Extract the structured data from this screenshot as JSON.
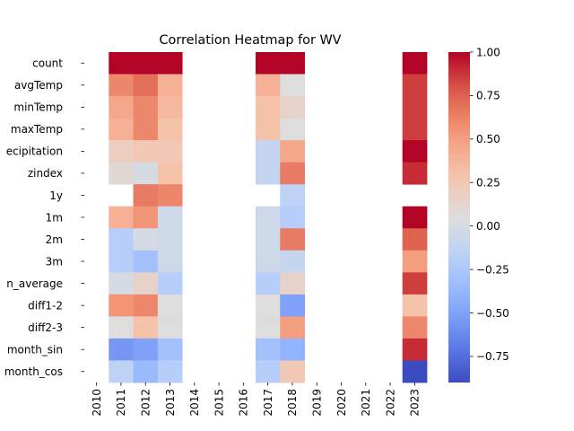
{
  "chart_data": {
    "type": "heatmap",
    "title": "Correlation Heatmap for WV",
    "xlabel": "",
    "ylabel": "",
    "colormap": "coolwarm",
    "clim": [
      -0.9,
      1.0
    ],
    "colorbar_ticks": [
      "1.00",
      "0.75",
      "0.50",
      "0.25",
      "0.00",
      "−0.25",
      "−0.50",
      "−0.75"
    ],
    "colorbar_tick_values": [
      1.0,
      0.75,
      0.5,
      0.25,
      0.0,
      -0.25,
      -0.5,
      -0.75
    ],
    "x_categories": [
      "2010",
      "2011",
      "2012",
      "2013",
      "2014",
      "2015",
      "2016",
      "2017",
      "2018",
      "2019",
      "2020",
      "2021",
      "2022",
      "2023"
    ],
    "y_categories": [
      "count",
      "avgTemp",
      "minTemp",
      "maxTemp",
      "precipitation",
      "zindex",
      "1y",
      "1m",
      "2m",
      "3m",
      "rolling_mean_average",
      "diff1-2",
      "diff2-3",
      "month_sin",
      "month_cos"
    ],
    "y_tick_labels_visible": [
      "count",
      "avgTemp",
      "minTemp",
      "maxTemp",
      "ecipitation",
      "zindex",
      "1y",
      "1m",
      "2m",
      "3m",
      "n_average",
      "diff1-2",
      "diff2-3",
      "month_sin",
      "month_cos"
    ],
    "values": [
      [
        null,
        1.0,
        1.0,
        1.0,
        null,
        null,
        null,
        1.0,
        1.0,
        null,
        null,
        null,
        null,
        1.0
      ],
      [
        null,
        0.6,
        0.7,
        0.4,
        null,
        null,
        null,
        0.4,
        0.05,
        null,
        null,
        null,
        null,
        0.85
      ],
      [
        null,
        0.45,
        0.6,
        0.35,
        null,
        null,
        null,
        0.3,
        0.15,
        null,
        null,
        null,
        null,
        0.85
      ],
      [
        null,
        0.4,
        0.6,
        0.3,
        null,
        null,
        null,
        0.3,
        0.05,
        null,
        null,
        null,
        null,
        0.85
      ],
      [
        null,
        0.2,
        0.25,
        0.25,
        null,
        null,
        null,
        -0.1,
        0.45,
        null,
        null,
        null,
        null,
        1.0
      ],
      [
        null,
        0.1,
        0.0,
        0.3,
        null,
        null,
        null,
        -0.1,
        0.65,
        null,
        null,
        null,
        null,
        0.9
      ],
      [
        null,
        null,
        0.65,
        0.6,
        null,
        null,
        null,
        null,
        -0.15,
        null,
        null,
        null,
        null,
        null
      ],
      [
        null,
        0.4,
        0.55,
        -0.05,
        null,
        null,
        null,
        -0.05,
        -0.2,
        null,
        null,
        null,
        null,
        1.0
      ],
      [
        null,
        -0.2,
        0.0,
        -0.05,
        null,
        null,
        null,
        -0.05,
        0.65,
        null,
        null,
        null,
        null,
        0.75
      ],
      [
        null,
        -0.2,
        -0.3,
        -0.05,
        null,
        null,
        null,
        -0.05,
        -0.1,
        null,
        null,
        null,
        null,
        0.5
      ],
      [
        null,
        0.0,
        0.15,
        -0.2,
        null,
        null,
        null,
        -0.2,
        0.15,
        null,
        null,
        null,
        null,
        0.85
      ],
      [
        null,
        0.55,
        0.6,
        0.05,
        null,
        null,
        null,
        0.05,
        -0.5,
        null,
        null,
        null,
        null,
        0.3
      ],
      [
        null,
        0.05,
        0.3,
        0.05,
        null,
        null,
        null,
        0.05,
        0.5,
        null,
        null,
        null,
        null,
        0.6
      ],
      [
        null,
        -0.55,
        -0.5,
        -0.3,
        null,
        null,
        null,
        -0.3,
        -0.4,
        null,
        null,
        null,
        null,
        0.9
      ],
      [
        null,
        -0.15,
        -0.35,
        -0.2,
        null,
        null,
        null,
        -0.2,
        0.25,
        null,
        null,
        null,
        null,
        -0.9
      ]
    ]
  }
}
